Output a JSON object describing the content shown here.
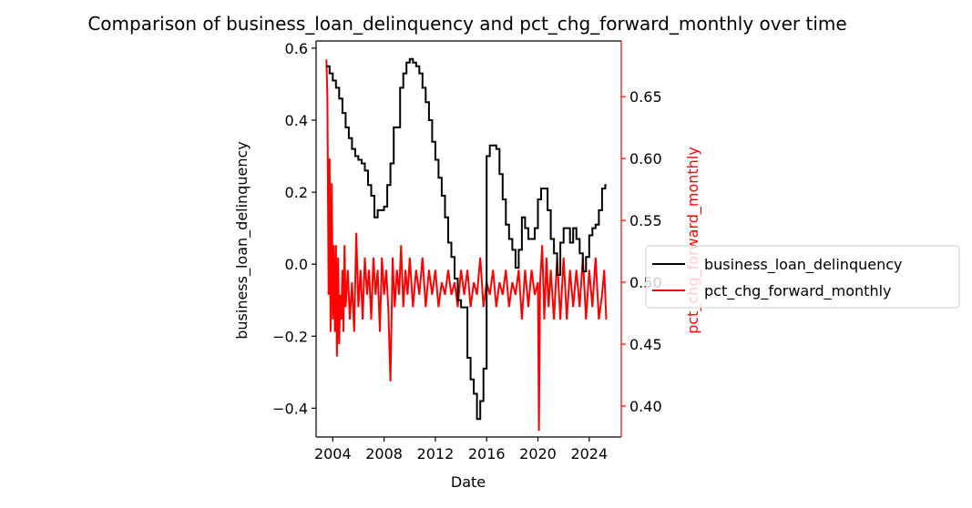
{
  "chart_data": {
    "type": "line",
    "title": "Comparison of business_loan_delinquency and pct_chg_forward_monthly over time",
    "xlabel": "Date",
    "ylabel_left": "business_loan_delinquency",
    "ylabel_right": "pct_chg_forward_monthly",
    "x_ticks": [
      "2004",
      "2008",
      "2012",
      "2016",
      "2020",
      "2024"
    ],
    "y_left_ticks": [
      "−0.4",
      "−0.2",
      "0.0",
      "0.2",
      "0.4",
      "0.6"
    ],
    "y_right_ticks": [
      "0.40",
      "0.45",
      "0.50",
      "0.55",
      "0.60",
      "0.65"
    ],
    "xlim": [
      2002.7,
      2026.5
    ],
    "ylim_left": [
      -0.48,
      0.62
    ],
    "ylim_right": [
      0.375,
      0.695
    ],
    "legend_position": "right, outside plot",
    "grid": false,
    "colors": {
      "business_loan_delinquency": "#000000",
      "pct_chg_forward_monthly": "#ff0000",
      "axes": "#000000",
      "right_axis": "#ff0000"
    },
    "series": [
      {
        "name": "business_loan_delinquency",
        "axis": "left",
        "color": "#000000",
        "x": [
          2003.5,
          2003.75,
          2004.0,
          2004.25,
          2004.5,
          2004.75,
          2005.0,
          2005.25,
          2005.5,
          2005.75,
          2006.0,
          2006.25,
          2006.5,
          2006.75,
          2007.0,
          2007.25,
          2007.5,
          2007.75,
          2008.0,
          2008.25,
          2008.5,
          2008.75,
          2009.0,
          2009.25,
          2009.5,
          2009.75,
          2010.0,
          2010.25,
          2010.5,
          2010.75,
          2011.0,
          2011.25,
          2011.5,
          2011.75,
          2012.0,
          2012.25,
          2012.5,
          2012.75,
          2013.0,
          2013.25,
          2013.5,
          2013.75,
          2014.0,
          2014.25,
          2014.5,
          2014.75,
          2015.0,
          2015.25,
          2015.5,
          2015.75,
          2016.0,
          2016.25,
          2016.5,
          2016.75,
          2017.0,
          2017.25,
          2017.5,
          2017.75,
          2018.0,
          2018.25,
          2018.5,
          2018.75,
          2019.0,
          2019.25,
          2019.5,
          2019.75,
          2020.0,
          2020.25,
          2020.5,
          2020.75,
          2021.0,
          2021.25,
          2021.5,
          2021.75,
          2022.0,
          2022.25,
          2022.5,
          2022.75,
          2023.0,
          2023.25,
          2023.5,
          2023.75,
          2024.0,
          2024.25,
          2024.5,
          2024.75,
          2025.0,
          2025.25
        ],
        "values": [
          0.55,
          0.53,
          0.51,
          0.49,
          0.46,
          0.42,
          0.38,
          0.35,
          0.32,
          0.3,
          0.29,
          0.28,
          0.26,
          0.22,
          0.19,
          0.13,
          0.15,
          0.15,
          0.16,
          0.22,
          0.28,
          0.38,
          0.38,
          0.49,
          0.53,
          0.56,
          0.57,
          0.56,
          0.55,
          0.53,
          0.49,
          0.45,
          0.4,
          0.34,
          0.29,
          0.24,
          0.19,
          0.13,
          0.06,
          0.02,
          -0.04,
          -0.1,
          -0.12,
          -0.12,
          -0.26,
          -0.32,
          -0.36,
          -0.43,
          -0.38,
          -0.29,
          0.3,
          0.33,
          0.33,
          0.32,
          0.25,
          0.18,
          0.11,
          0.07,
          0.04,
          -0.01,
          0.04,
          0.13,
          0.1,
          0.07,
          0.07,
          0.1,
          0.18,
          0.21,
          0.21,
          0.15,
          0.07,
          0.03,
          -0.03,
          0.06,
          0.1,
          0.1,
          0.06,
          0.1,
          0.07,
          0.03,
          -0.02,
          0.02,
          0.08,
          0.1,
          0.11,
          0.15,
          0.21,
          0.22
        ]
      },
      {
        "name": "pct_chg_forward_monthly",
        "axis": "right",
        "color": "#ff0000",
        "x": [
          2003.5,
          2003.58,
          2003.67,
          2003.75,
          2003.83,
          2003.92,
          2004.0,
          2004.08,
          2004.17,
          2004.25,
          2004.33,
          2004.42,
          2004.5,
          2004.58,
          2004.67,
          2004.75,
          2004.83,
          2004.92,
          2005.0,
          2005.17,
          2005.33,
          2005.5,
          2005.67,
          2005.83,
          2006.0,
          2006.17,
          2006.33,
          2006.5,
          2006.67,
          2006.83,
          2007.0,
          2007.17,
          2007.33,
          2007.5,
          2007.67,
          2007.83,
          2008.0,
          2008.17,
          2008.33,
          2008.5,
          2008.67,
          2008.83,
          2009.0,
          2009.17,
          2009.33,
          2009.5,
          2009.67,
          2009.83,
          2010.0,
          2010.25,
          2010.5,
          2010.75,
          2011.0,
          2011.25,
          2011.5,
          2011.75,
          2012.0,
          2012.25,
          2012.5,
          2012.75,
          2013.0,
          2013.25,
          2013.5,
          2013.75,
          2014.0,
          2014.25,
          2014.5,
          2014.75,
          2015.0,
          2015.25,
          2015.5,
          2015.75,
          2016.0,
          2016.25,
          2016.5,
          2016.75,
          2017.0,
          2017.25,
          2017.5,
          2017.75,
          2018.0,
          2018.25,
          2018.5,
          2018.75,
          2019.0,
          2019.25,
          2019.5,
          2019.75,
          2020.0,
          2020.08,
          2020.17,
          2020.33,
          2020.5,
          2020.67,
          2020.83,
          2021.0,
          2021.25,
          2021.5,
          2021.75,
          2022.0,
          2022.25,
          2022.5,
          2022.75,
          2023.0,
          2023.25,
          2023.5,
          2023.75,
          2024.0,
          2024.25,
          2024.5,
          2024.75,
          2025.0,
          2025.17,
          2025.33
        ],
        "values": [
          0.68,
          0.65,
          0.49,
          0.6,
          0.46,
          0.58,
          0.47,
          0.53,
          0.46,
          0.53,
          0.44,
          0.52,
          0.45,
          0.49,
          0.47,
          0.51,
          0.46,
          0.53,
          0.48,
          0.51,
          0.47,
          0.5,
          0.46,
          0.54,
          0.48,
          0.51,
          0.47,
          0.52,
          0.49,
          0.51,
          0.47,
          0.52,
          0.49,
          0.51,
          0.46,
          0.52,
          0.49,
          0.51,
          0.48,
          0.42,
          0.52,
          0.48,
          0.51,
          0.49,
          0.53,
          0.48,
          0.51,
          0.49,
          0.52,
          0.48,
          0.51,
          0.49,
          0.52,
          0.48,
          0.51,
          0.49,
          0.51,
          0.48,
          0.5,
          0.49,
          0.51,
          0.49,
          0.5,
          0.48,
          0.51,
          0.49,
          0.51,
          0.48,
          0.5,
          0.49,
          0.52,
          0.48,
          0.5,
          0.49,
          0.51,
          0.48,
          0.5,
          0.49,
          0.51,
          0.48,
          0.5,
          0.49,
          0.51,
          0.47,
          0.51,
          0.48,
          0.51,
          0.49,
          0.5,
          0.38,
          0.5,
          0.53,
          0.47,
          0.52,
          0.48,
          0.51,
          0.47,
          0.52,
          0.47,
          0.52,
          0.47,
          0.51,
          0.48,
          0.51,
          0.48,
          0.52,
          0.47,
          0.51,
          0.48,
          0.52,
          0.47,
          0.49,
          0.51,
          0.47
        ]
      }
    ]
  }
}
